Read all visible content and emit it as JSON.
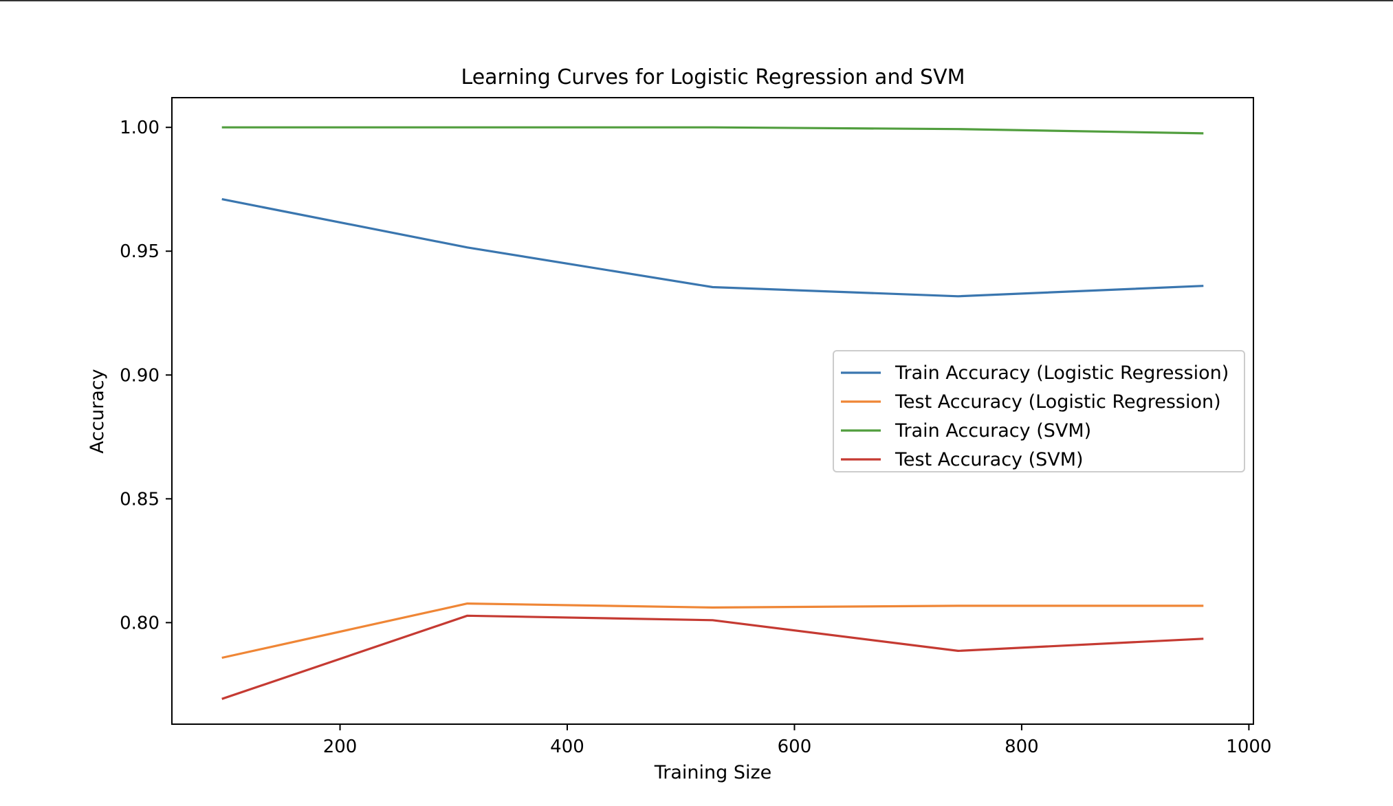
{
  "chart_data": {
    "type": "line",
    "title": "Learning Curves for Logistic Regression and SVM",
    "xlabel": "Training Size",
    "ylabel": "Accuracy",
    "xlim": [
      52,
      1004
    ],
    "ylim": [
      0.759,
      1.012
    ],
    "xticks": [
      200,
      400,
      600,
      800,
      1000
    ],
    "xtick_labels": [
      "200",
      "400",
      "600",
      "800",
      "1000"
    ],
    "yticks": [
      0.8,
      0.85,
      0.9,
      0.95,
      1.0
    ],
    "ytick_labels": [
      "0.80",
      "0.85",
      "0.90",
      "0.95",
      "1.00"
    ],
    "grid": false,
    "legend_position": "center-right",
    "x": [
      96,
      312,
      528,
      744,
      960
    ],
    "series": [
      {
        "name": "Train Accuracy (Logistic Regression)",
        "color": "#3a76af",
        "values": [
          0.971,
          0.9515,
          0.9355,
          0.9318,
          0.936
        ]
      },
      {
        "name": "Test Accuracy (Logistic Regression)",
        "color": "#ef8636",
        "values": [
          0.7858,
          0.8077,
          0.8061,
          0.8068,
          0.8068
        ]
      },
      {
        "name": "Train Accuracy (SVM)",
        "color": "#519e3e",
        "values": [
          1.0,
          1.0,
          1.0,
          0.9993,
          0.9976
        ]
      },
      {
        "name": "Test Accuracy (SVM)",
        "color": "#c53a32",
        "values": [
          0.7692,
          0.8028,
          0.801,
          0.7886,
          0.7935
        ]
      }
    ]
  }
}
